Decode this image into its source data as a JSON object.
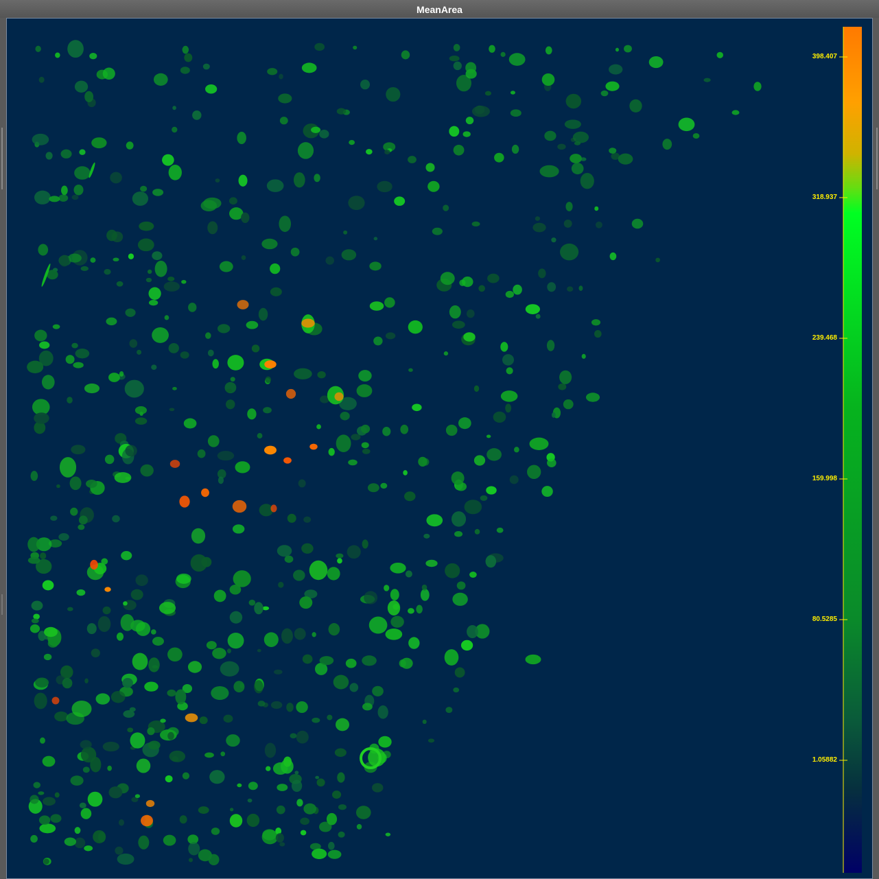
{
  "window": {
    "title": "MeanArea"
  },
  "colorbar": {
    "ticks": [
      "398.407",
      "318.937",
      "239.468",
      "159.998",
      "80.5285",
      "1.05882"
    ],
    "colors": {
      "low": "#000066",
      "dark": "#003a3a",
      "green_mid": "#0a8a1e",
      "green_bright": "#1dff1d",
      "orange": "#ff8a00",
      "red": "#ff4a00",
      "label": "#ffee00"
    }
  }
}
